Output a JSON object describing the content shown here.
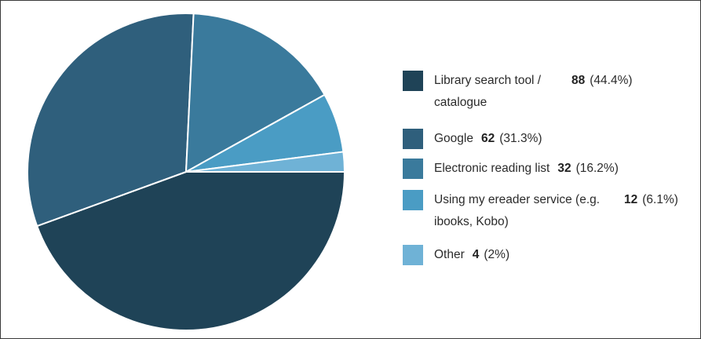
{
  "chart_data": {
    "type": "pie",
    "slices": [
      {
        "label": "Library search tool / catalogue",
        "value": 88,
        "percent": "(44.4%)",
        "color": "#1f4357"
      },
      {
        "label": "Google",
        "value": 62,
        "percent": "(31.3%)",
        "color": "#2f5f7c"
      },
      {
        "label": "Electronic reading list",
        "value": 32,
        "percent": "(16.2%)",
        "color": "#3a7a9c"
      },
      {
        "label": "Using my ereader service (e.g. ibooks, Kobo)",
        "value": 12,
        "percent": "(6.1%)",
        "color": "#4a9cc4"
      },
      {
        "label": "Other",
        "value": 4,
        "percent": "(2%)",
        "color": "#6fb2d6"
      }
    ],
    "legend_position": "right"
  }
}
